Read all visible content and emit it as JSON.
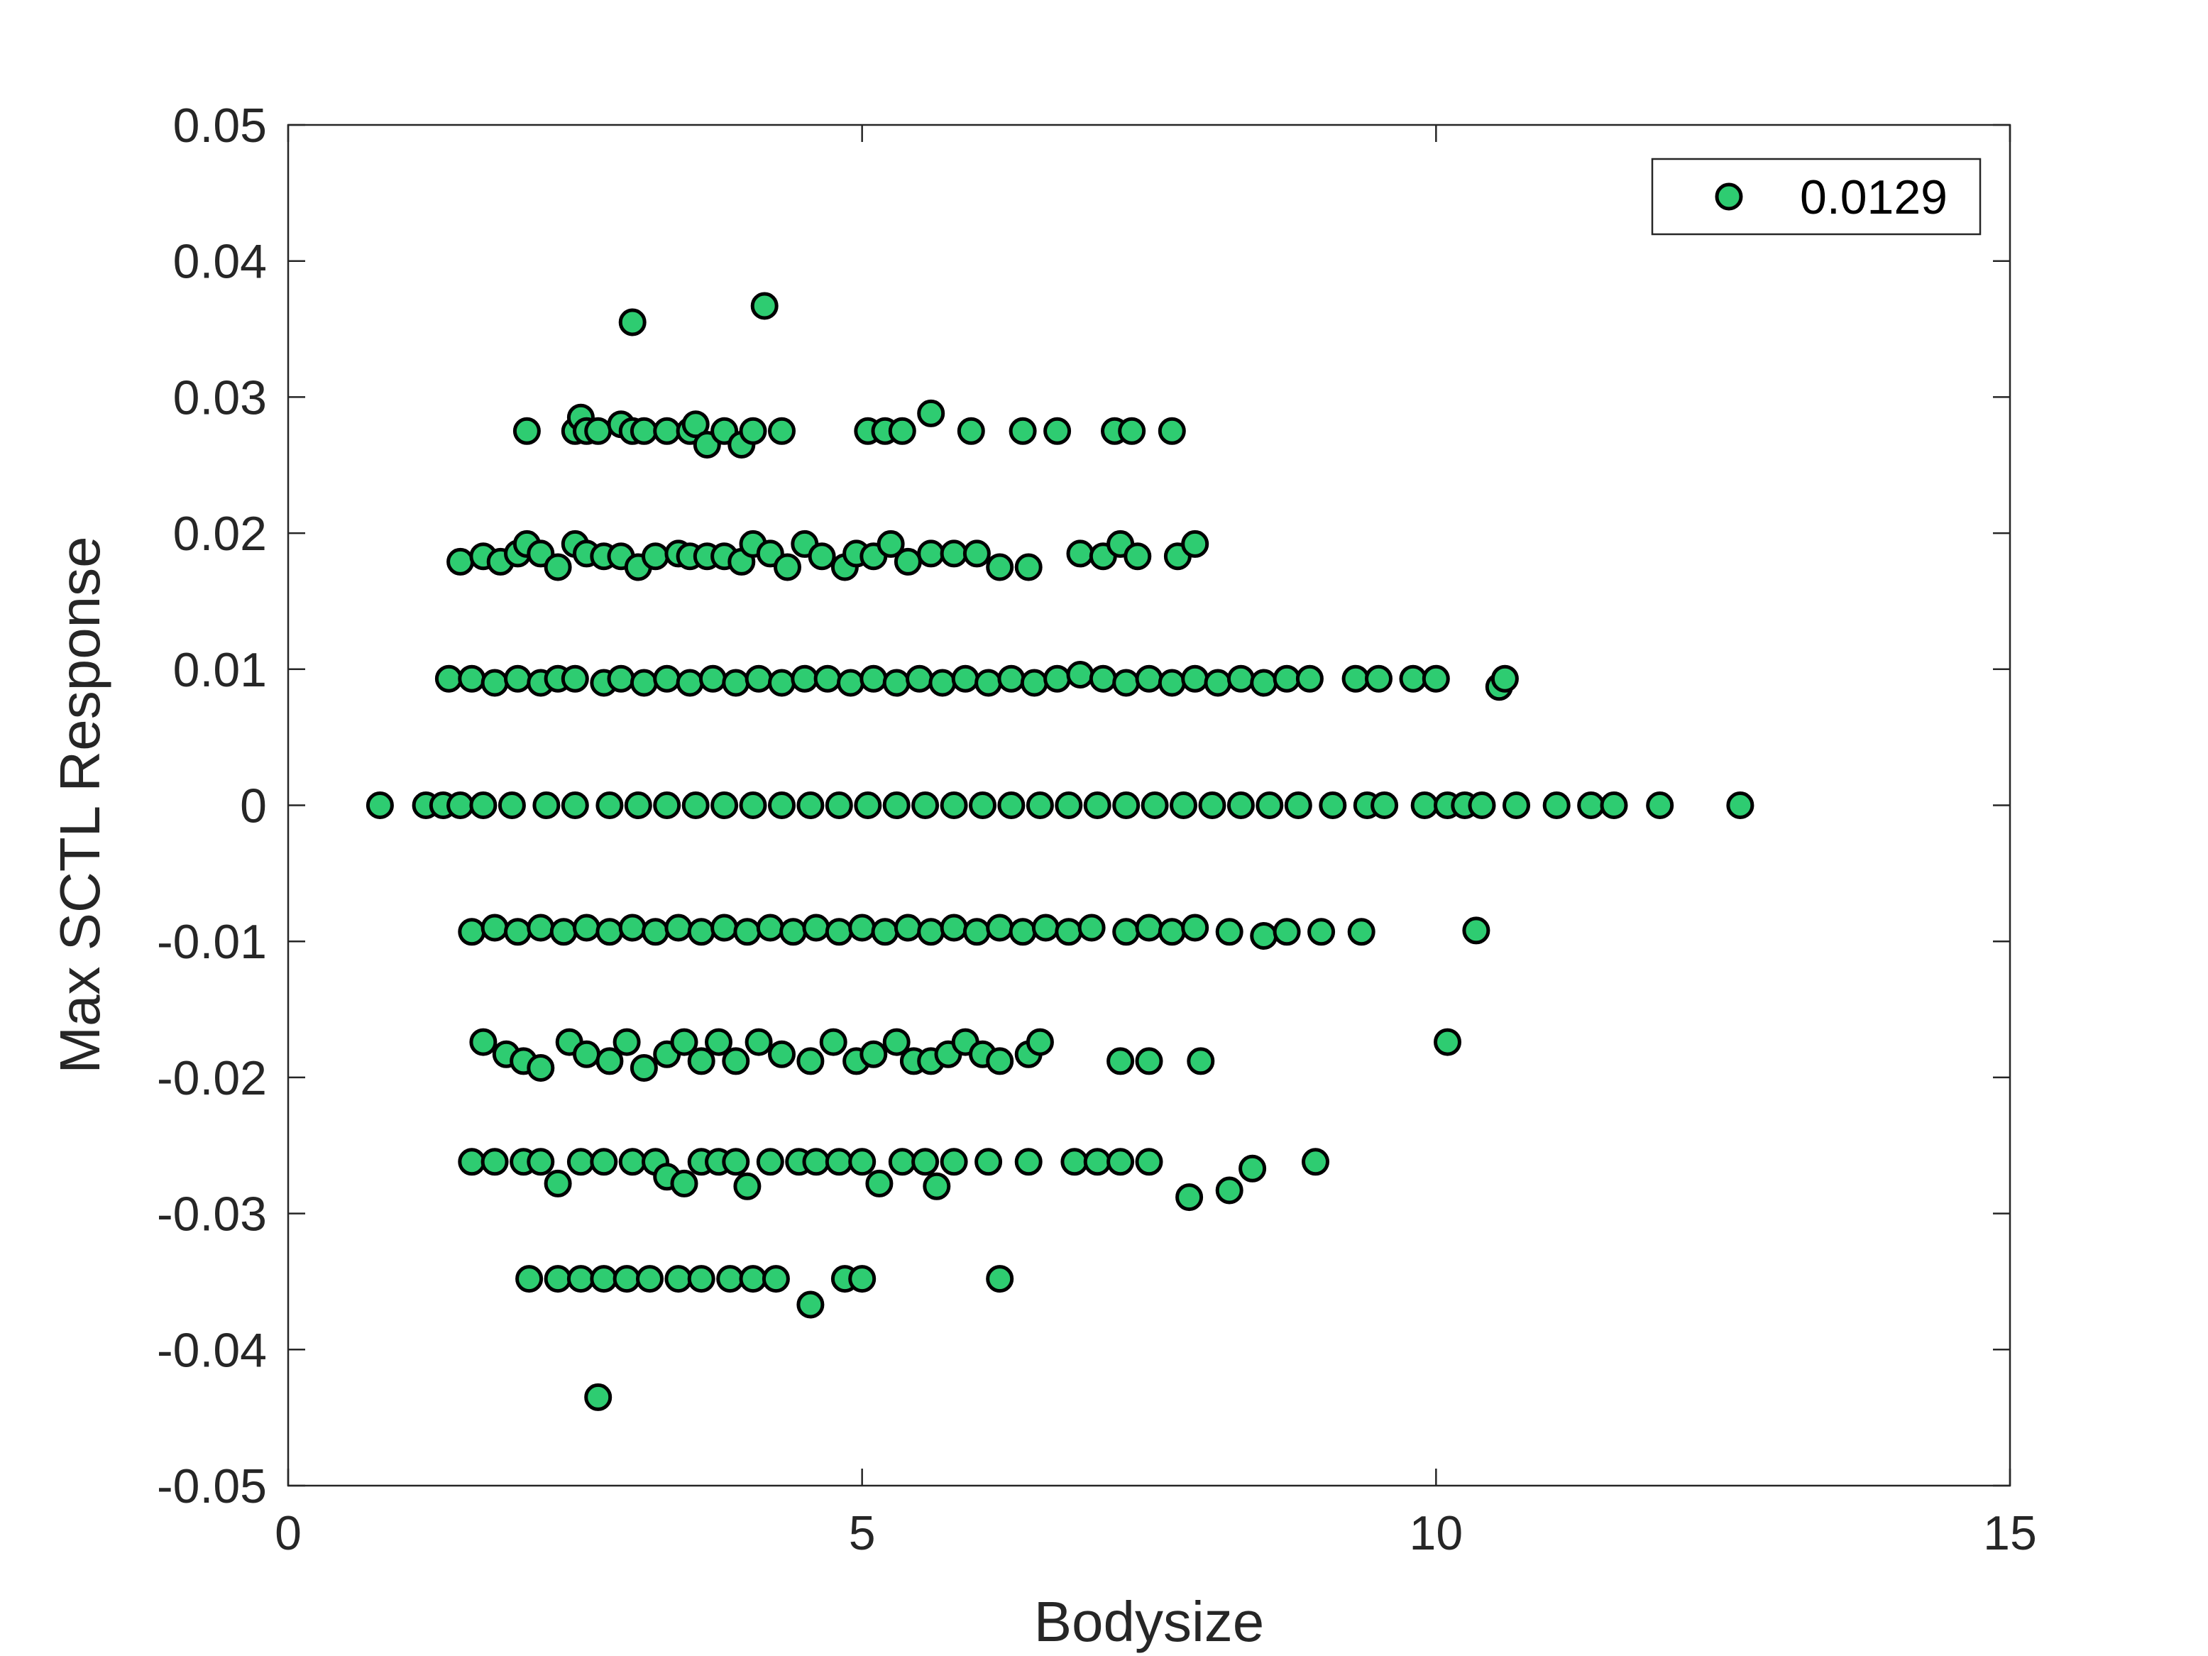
{
  "chart_data": {
    "type": "scatter",
    "title": "",
    "xlabel": "Bodysize",
    "ylabel": "Max SCTL Response",
    "xlim": [
      0,
      15
    ],
    "ylim": [
      -0.05,
      0.05
    ],
    "xticks": [
      "0",
      "5",
      "10",
      "15"
    ],
    "yticks": [
      "-0.05",
      "-0.04",
      "-0.03",
      "-0.02",
      "-0.01",
      "0",
      "0.01",
      "0.02",
      "0.03",
      "0.04",
      "0.05"
    ],
    "grid": false,
    "legend_position": "top-right",
    "marker_color": "#2ecc71",
    "marker_edge_color": "#000000",
    "series": [
      {
        "name": "0.0129",
        "points": [
          [
            3.0,
            0.0355
          ],
          [
            4.15,
            0.0367
          ],
          [
            2.08,
            0.0275
          ],
          [
            2.5,
            0.0275
          ],
          [
            2.55,
            0.0285
          ],
          [
            2.6,
            0.0275
          ],
          [
            2.7,
            0.0275
          ],
          [
            2.9,
            0.028
          ],
          [
            3.0,
            0.0275
          ],
          [
            3.1,
            0.0275
          ],
          [
            3.3,
            0.0275
          ],
          [
            3.5,
            0.0275
          ],
          [
            3.55,
            0.028
          ],
          [
            3.65,
            0.0265
          ],
          [
            3.8,
            0.0275
          ],
          [
            3.95,
            0.0265
          ],
          [
            4.05,
            0.0275
          ],
          [
            4.3,
            0.0275
          ],
          [
            5.05,
            0.0275
          ],
          [
            5.2,
            0.0275
          ],
          [
            5.35,
            0.0275
          ],
          [
            5.6,
            0.0288
          ],
          [
            5.95,
            0.0275
          ],
          [
            6.4,
            0.0275
          ],
          [
            6.7,
            0.0275
          ],
          [
            7.2,
            0.0275
          ],
          [
            7.35,
            0.0275
          ],
          [
            7.7,
            0.0275
          ],
          [
            1.5,
            0.0179
          ],
          [
            1.7,
            0.0183
          ],
          [
            1.85,
            0.0179
          ],
          [
            2.0,
            0.0185
          ],
          [
            2.08,
            0.0192
          ],
          [
            2.2,
            0.0185
          ],
          [
            2.35,
            0.0175
          ],
          [
            2.5,
            0.0192
          ],
          [
            2.6,
            0.0185
          ],
          [
            2.75,
            0.0183
          ],
          [
            2.9,
            0.0183
          ],
          [
            3.05,
            0.0175
          ],
          [
            3.2,
            0.0183
          ],
          [
            3.4,
            0.0185
          ],
          [
            3.5,
            0.0183
          ],
          [
            3.65,
            0.0183
          ],
          [
            3.8,
            0.0183
          ],
          [
            3.95,
            0.0179
          ],
          [
            4.05,
            0.0192
          ],
          [
            4.2,
            0.0185
          ],
          [
            4.35,
            0.0175
          ],
          [
            4.5,
            0.0192
          ],
          [
            4.65,
            0.0183
          ],
          [
            4.85,
            0.0175
          ],
          [
            4.95,
            0.0185
          ],
          [
            5.1,
            0.0183
          ],
          [
            5.25,
            0.0192
          ],
          [
            5.4,
            0.0179
          ],
          [
            5.6,
            0.0185
          ],
          [
            5.8,
            0.0185
          ],
          [
            6.0,
            0.0185
          ],
          [
            6.2,
            0.0175
          ],
          [
            6.45,
            0.0175
          ],
          [
            6.9,
            0.0185
          ],
          [
            7.1,
            0.0183
          ],
          [
            7.25,
            0.0192
          ],
          [
            7.4,
            0.0183
          ],
          [
            7.75,
            0.0183
          ],
          [
            7.9,
            0.0192
          ],
          [
            1.4,
            0.0093
          ],
          [
            1.6,
            0.0093
          ],
          [
            1.8,
            0.009
          ],
          [
            2.0,
            0.0093
          ],
          [
            2.2,
            0.009
          ],
          [
            2.35,
            0.0093
          ],
          [
            2.5,
            0.0093
          ],
          [
            2.75,
            0.009
          ],
          [
            2.9,
            0.0093
          ],
          [
            3.1,
            0.009
          ],
          [
            3.3,
            0.0093
          ],
          [
            3.5,
            0.009
          ],
          [
            3.7,
            0.0093
          ],
          [
            3.9,
            0.009
          ],
          [
            4.1,
            0.0093
          ],
          [
            4.3,
            0.009
          ],
          [
            4.5,
            0.0093
          ],
          [
            4.7,
            0.0093
          ],
          [
            4.9,
            0.009
          ],
          [
            5.1,
            0.0093
          ],
          [
            5.3,
            0.009
          ],
          [
            5.5,
            0.0093
          ],
          [
            5.7,
            0.009
          ],
          [
            5.9,
            0.0093
          ],
          [
            6.1,
            0.009
          ],
          [
            6.3,
            0.0093
          ],
          [
            6.5,
            0.009
          ],
          [
            6.7,
            0.0093
          ],
          [
            6.9,
            0.0096
          ],
          [
            7.1,
            0.0093
          ],
          [
            7.3,
            0.009
          ],
          [
            7.5,
            0.0093
          ],
          [
            7.7,
            0.009
          ],
          [
            7.9,
            0.0093
          ],
          [
            8.1,
            0.009
          ],
          [
            8.3,
            0.0093
          ],
          [
            8.5,
            0.009
          ],
          [
            8.7,
            0.0093
          ],
          [
            8.9,
            0.0093
          ],
          [
            9.3,
            0.0093
          ],
          [
            9.5,
            0.0093
          ],
          [
            9.8,
            0.0093
          ],
          [
            10.0,
            0.0093
          ],
          [
            10.55,
            0.0087
          ],
          [
            10.6,
            0.0093
          ],
          [
            0.8,
            0.0
          ],
          [
            1.2,
            0.0
          ],
          [
            1.35,
            0.0
          ],
          [
            1.5,
            0.0
          ],
          [
            1.7,
            0.0
          ],
          [
            1.95,
            0.0
          ],
          [
            2.25,
            0.0
          ],
          [
            2.5,
            0.0
          ],
          [
            2.8,
            0.0
          ],
          [
            3.05,
            0.0
          ],
          [
            3.3,
            0.0
          ],
          [
            3.55,
            0.0
          ],
          [
            3.8,
            0.0
          ],
          [
            4.05,
            0.0
          ],
          [
            4.3,
            0.0
          ],
          [
            4.55,
            0.0
          ],
          [
            4.8,
            0.0
          ],
          [
            5.05,
            0.0
          ],
          [
            5.3,
            0.0
          ],
          [
            5.55,
            0.0
          ],
          [
            5.8,
            0.0
          ],
          [
            6.05,
            0.0
          ],
          [
            6.3,
            0.0
          ],
          [
            6.55,
            0.0
          ],
          [
            6.8,
            0.0
          ],
          [
            7.05,
            0.0
          ],
          [
            7.3,
            0.0
          ],
          [
            7.55,
            0.0
          ],
          [
            7.8,
            0.0
          ],
          [
            8.05,
            0.0
          ],
          [
            8.3,
            0.0
          ],
          [
            8.55,
            0.0
          ],
          [
            8.8,
            0.0
          ],
          [
            9.1,
            0.0
          ],
          [
            9.4,
            0.0
          ],
          [
            9.55,
            0.0
          ],
          [
            9.9,
            0.0
          ],
          [
            10.1,
            0.0
          ],
          [
            10.25,
            0.0
          ],
          [
            10.4,
            0.0
          ],
          [
            10.7,
            0.0
          ],
          [
            11.05,
            0.0
          ],
          [
            11.35,
            0.0
          ],
          [
            11.55,
            0.0
          ],
          [
            11.95,
            0.0
          ],
          [
            12.65,
            0.0
          ],
          [
            1.6,
            -0.0093
          ],
          [
            1.8,
            -0.009
          ],
          [
            2.0,
            -0.0093
          ],
          [
            2.2,
            -0.009
          ],
          [
            2.4,
            -0.0093
          ],
          [
            2.6,
            -0.009
          ],
          [
            2.8,
            -0.0093
          ],
          [
            3.0,
            -0.009
          ],
          [
            3.2,
            -0.0093
          ],
          [
            3.4,
            -0.009
          ],
          [
            3.6,
            -0.0093
          ],
          [
            3.8,
            -0.009
          ],
          [
            4.0,
            -0.0093
          ],
          [
            4.2,
            -0.009
          ],
          [
            4.4,
            -0.0093
          ],
          [
            4.6,
            -0.009
          ],
          [
            4.8,
            -0.0093
          ],
          [
            5.0,
            -0.009
          ],
          [
            5.2,
            -0.0093
          ],
          [
            5.4,
            -0.009
          ],
          [
            5.6,
            -0.0093
          ],
          [
            5.8,
            -0.009
          ],
          [
            6.0,
            -0.0093
          ],
          [
            6.2,
            -0.009
          ],
          [
            6.4,
            -0.0093
          ],
          [
            6.6,
            -0.009
          ],
          [
            6.8,
            -0.0093
          ],
          [
            7.0,
            -0.009
          ],
          [
            7.3,
            -0.0093
          ],
          [
            7.5,
            -0.009
          ],
          [
            7.7,
            -0.0093
          ],
          [
            7.9,
            -0.009
          ],
          [
            8.2,
            -0.0093
          ],
          [
            8.5,
            -0.0096
          ],
          [
            8.7,
            -0.0093
          ],
          [
            9.0,
            -0.0093
          ],
          [
            9.35,
            -0.0093
          ],
          [
            10.35,
            -0.0092
          ],
          [
            1.7,
            -0.0174
          ],
          [
            1.9,
            -0.0183
          ],
          [
            2.05,
            -0.0188
          ],
          [
            2.2,
            -0.0193
          ],
          [
            2.45,
            -0.0174
          ],
          [
            2.6,
            -0.0183
          ],
          [
            2.8,
            -0.0188
          ],
          [
            2.95,
            -0.0174
          ],
          [
            3.1,
            -0.0193
          ],
          [
            3.3,
            -0.0183
          ],
          [
            3.45,
            -0.0174
          ],
          [
            3.6,
            -0.0188
          ],
          [
            3.75,
            -0.0174
          ],
          [
            3.9,
            -0.0188
          ],
          [
            4.1,
            -0.0174
          ],
          [
            4.3,
            -0.0183
          ],
          [
            4.55,
            -0.0188
          ],
          [
            4.75,
            -0.0174
          ],
          [
            4.95,
            -0.0188
          ],
          [
            5.1,
            -0.0183
          ],
          [
            5.3,
            -0.0174
          ],
          [
            5.45,
            -0.0188
          ],
          [
            5.6,
            -0.0188
          ],
          [
            5.75,
            -0.0183
          ],
          [
            5.9,
            -0.0174
          ],
          [
            6.05,
            -0.0183
          ],
          [
            6.2,
            -0.0188
          ],
          [
            6.45,
            -0.0183
          ],
          [
            6.55,
            -0.0174
          ],
          [
            7.25,
            -0.0188
          ],
          [
            7.5,
            -0.0188
          ],
          [
            7.95,
            -0.0188
          ],
          [
            10.1,
            -0.0174
          ],
          [
            1.6,
            -0.0262
          ],
          [
            1.8,
            -0.0262
          ],
          [
            2.05,
            -0.0262
          ],
          [
            2.2,
            -0.0262
          ],
          [
            2.35,
            -0.0278
          ],
          [
            2.55,
            -0.0262
          ],
          [
            2.75,
            -0.0262
          ],
          [
            3.0,
            -0.0262
          ],
          [
            3.2,
            -0.0262
          ],
          [
            3.3,
            -0.0273
          ],
          [
            3.45,
            -0.0278
          ],
          [
            3.6,
            -0.0262
          ],
          [
            3.75,
            -0.0262
          ],
          [
            3.9,
            -0.0262
          ],
          [
            4.0,
            -0.028
          ],
          [
            4.2,
            -0.0262
          ],
          [
            4.45,
            -0.0262
          ],
          [
            4.6,
            -0.0262
          ],
          [
            4.8,
            -0.0262
          ],
          [
            5.0,
            -0.0262
          ],
          [
            5.15,
            -0.0278
          ],
          [
            5.35,
            -0.0262
          ],
          [
            5.55,
            -0.0262
          ],
          [
            5.65,
            -0.028
          ],
          [
            5.8,
            -0.0262
          ],
          [
            6.1,
            -0.0262
          ],
          [
            6.45,
            -0.0262
          ],
          [
            6.85,
            -0.0262
          ],
          [
            7.05,
            -0.0262
          ],
          [
            7.25,
            -0.0262
          ],
          [
            7.5,
            -0.0262
          ],
          [
            7.85,
            -0.0288
          ],
          [
            8.2,
            -0.0283
          ],
          [
            8.4,
            -0.0267
          ],
          [
            8.95,
            -0.0262
          ],
          [
            2.1,
            -0.0348
          ],
          [
            2.35,
            -0.0348
          ],
          [
            2.55,
            -0.0348
          ],
          [
            2.75,
            -0.0348
          ],
          [
            2.95,
            -0.0348
          ],
          [
            3.15,
            -0.0348
          ],
          [
            3.4,
            -0.0348
          ],
          [
            3.6,
            -0.0348
          ],
          [
            3.85,
            -0.0348
          ],
          [
            4.05,
            -0.0348
          ],
          [
            4.25,
            -0.0348
          ],
          [
            4.55,
            -0.0367
          ],
          [
            4.85,
            -0.0348
          ],
          [
            5.0,
            -0.0348
          ],
          [
            6.2,
            -0.0348
          ],
          [
            2.7,
            -0.0435
          ]
        ]
      }
    ]
  }
}
